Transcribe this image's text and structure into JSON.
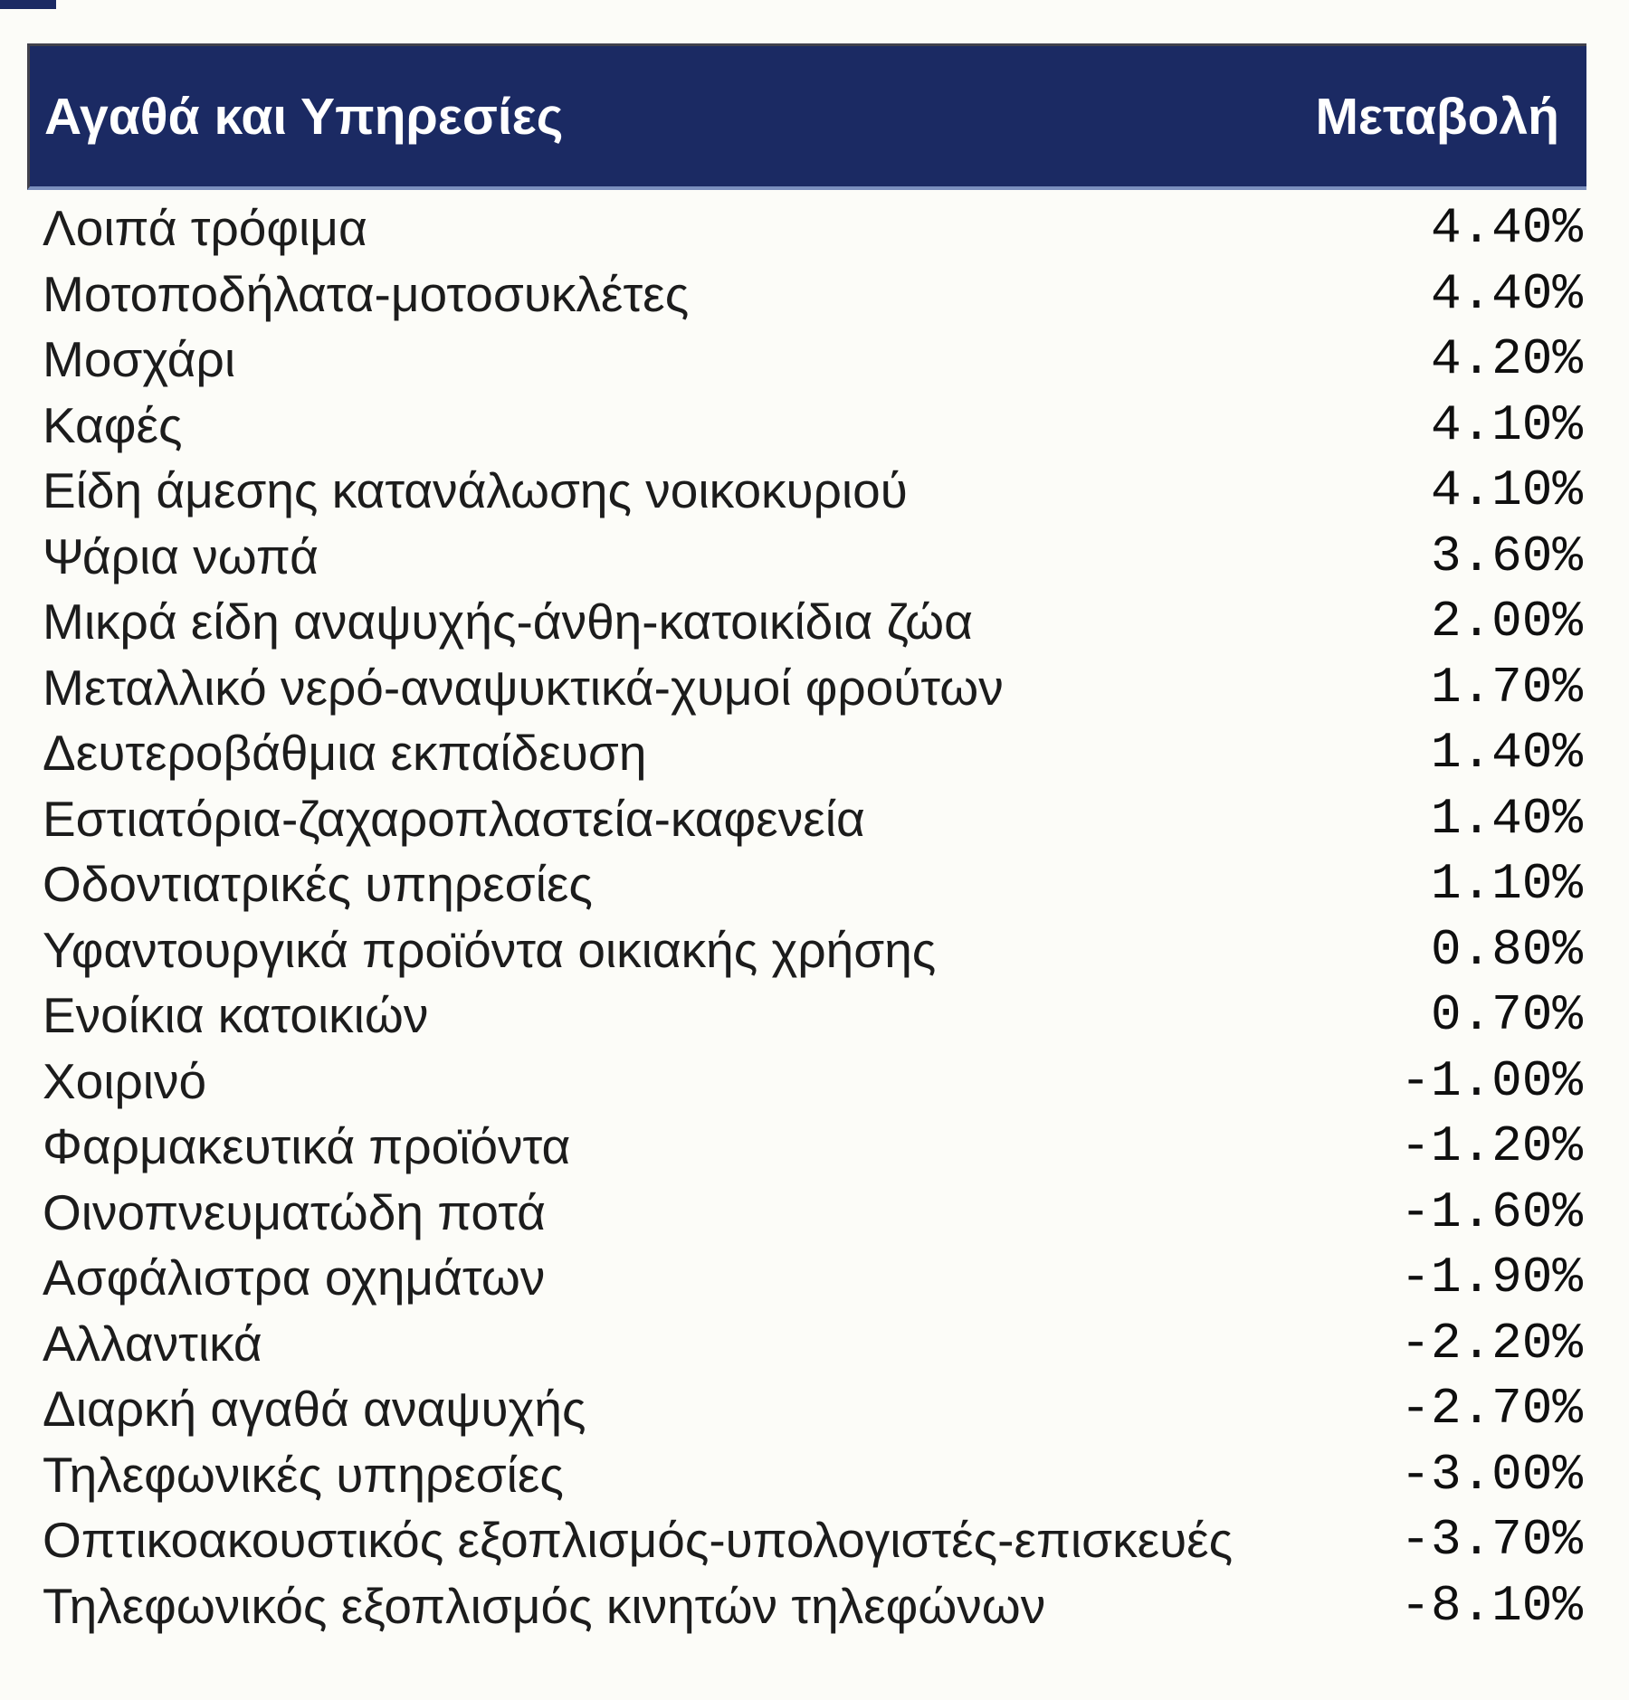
{
  "page": {
    "background_color": "#fcfcf8",
    "header_bg_color": "#1b2a63",
    "header_text_color": "#ffffff",
    "body_text_color": "#1c1c1c"
  },
  "table": {
    "columns": [
      "Αγαθά και Υπηρεσίες",
      "Μεταβολή"
    ],
    "rows": [
      {
        "label": "Λοιπά τρόφιμα",
        "value": "4.40%"
      },
      {
        "label": "Μοτοποδήλατα-μοτοσυκλέτες",
        "value": "4.40%"
      },
      {
        "label": "Μοσχάρι",
        "value": "4.20%"
      },
      {
        "label": "Καφές",
        "value": "4.10%"
      },
      {
        "label": "Είδη άμεσης κατανάλωσης νοικοκυριού",
        "value": "4.10%"
      },
      {
        "label": "Ψάρια νωπά",
        "value": "3.60%"
      },
      {
        "label": "Μικρά είδη αναψυχής-άνθη-κατοικίδια ζώα",
        "value": "2.00%"
      },
      {
        "label": "Μεταλλικό νερό-αναψυκτικά-χυμοί φρούτων",
        "value": "1.70%"
      },
      {
        "label": "Δευτεροβάθμια εκπαίδευση",
        "value": "1.40%"
      },
      {
        "label": "Εστιατόρια-ζαχαροπλαστεία-καφενεία",
        "value": "1.40%"
      },
      {
        "label": "Οδοντιατρικές υπηρεσίες",
        "value": "1.10%"
      },
      {
        "label": "Υφαντουργικά προϊόντα οικιακής χρήσης",
        "value": "0.80%"
      },
      {
        "label": "Ενοίκια κατοικιών",
        "value": "0.70%"
      },
      {
        "label": "Χοιρινό",
        "value": "-1.00%"
      },
      {
        "label": "Φαρμακευτικά προϊόντα",
        "value": "-1.20%"
      },
      {
        "label": "Οινοπνευματώδη ποτά",
        "value": "-1.60%"
      },
      {
        "label": "Ασφάλιστρα οχημάτων",
        "value": "-1.90%"
      },
      {
        "label": "Αλλαντικά",
        "value": "-2.20%"
      },
      {
        "label": "Διαρκή αγαθά αναψυχής",
        "value": "-2.70%"
      },
      {
        "label": "Τηλεφωνικές υπηρεσίες",
        "value": "-3.00%"
      },
      {
        "label": "Οπτικοακουστικός εξοπλισμός-υπολογιστές-επισκευές",
        "value": "-3.70%"
      },
      {
        "label": "Τηλεφωνικός εξοπλισμός κινητών τηλεφώνων",
        "value": "-8.10%"
      }
    ]
  },
  "chart_data": {
    "type": "table",
    "title": "",
    "columns": [
      "Αγαθά και Υπηρεσίες",
      "Μεταβολή"
    ],
    "categories": [
      "Λοιπά τρόφιμα",
      "Μοτοποδήλατα-μοτοσυκλέτες",
      "Μοσχάρι",
      "Καφές",
      "Είδη άμεσης κατανάλωσης νοικοκυριού",
      "Ψάρια νωπά",
      "Μικρά είδη αναψυχής-άνθη-κατοικίδια ζώα",
      "Μεταλλικό νερό-αναψυκτικά-χυμοί φρούτων",
      "Δευτεροβάθμια εκπαίδευση",
      "Εστιατόρια-ζαχαροπλαστεία-καφενεία",
      "Οδοντιατρικές υπηρεσίες",
      "Υφαντουργικά προϊόντα οικιακής χρήσης",
      "Ενοίκια κατοικιών",
      "Χοιρινό",
      "Φαρμακευτικά προϊόντα",
      "Οινοπνευματώδη ποτά",
      "Ασφάλιστρα οχημάτων",
      "Αλλαντικά",
      "Διαρκή αγαθά αναψυχής",
      "Τηλεφωνικές υπηρεσίες",
      "Οπτικοακουστικός εξοπλισμός-υπολογιστές-επισκευές",
      "Τηλεφωνικός εξοπλισμός κινητών τηλεφώνων"
    ],
    "values": [
      4.4,
      4.4,
      4.2,
      4.1,
      4.1,
      3.6,
      2.0,
      1.7,
      1.4,
      1.4,
      1.1,
      0.8,
      0.7,
      -1.0,
      -1.2,
      -1.6,
      -1.9,
      -2.2,
      -2.7,
      -3.0,
      -3.7,
      -8.1
    ],
    "value_format": "percent, 2 decimals",
    "sorted": "descending by value"
  }
}
